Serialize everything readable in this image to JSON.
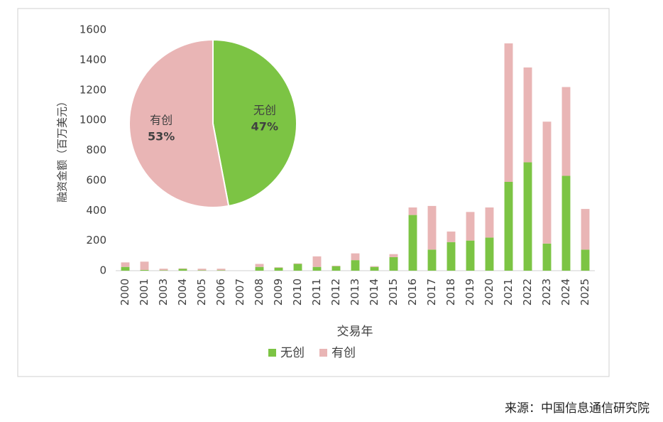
{
  "chart_data": [
    {
      "type": "bar",
      "stacked": true,
      "y_label": "融资金额（百万美元）",
      "x_label": "交易年",
      "categories": [
        "2000",
        "2001",
        "2003",
        "2004",
        "2005",
        "2006",
        "2007",
        "2008",
        "2009",
        "2010",
        "2011",
        "2012",
        "2013",
        "2014",
        "2015",
        "2016",
        "2017",
        "2018",
        "2019",
        "2020",
        "2021",
        "2022",
        "2023",
        "2024",
        "2025"
      ],
      "series": [
        {
          "name": "无创",
          "color": "#7cc444",
          "values": [
            25,
            5,
            3,
            12,
            3,
            3,
            0,
            25,
            20,
            45,
            25,
            30,
            70,
            25,
            90,
            370,
            140,
            190,
            200,
            220,
            590,
            720,
            180,
            630,
            140
          ]
        },
        {
          "name": "有创",
          "color": "#e9b5b5",
          "values": [
            30,
            55,
            10,
            3,
            10,
            10,
            0,
            20,
            3,
            3,
            70,
            3,
            45,
            5,
            20,
            50,
            290,
            70,
            190,
            200,
            920,
            630,
            810,
            590,
            270
          ]
        }
      ],
      "ylim": [
        0,
        1600
      ],
      "yticks": [
        0,
        200,
        400,
        600,
        800,
        1000,
        1200,
        1400,
        1600
      ],
      "legend": "bottom"
    },
    {
      "type": "pie",
      "categories": [
        "无创",
        "有创"
      ],
      "values": [
        47,
        53
      ],
      "value_labels": [
        "47%",
        "53%"
      ],
      "colors": [
        "#7cc444",
        "#e9b5b5"
      ]
    }
  ],
  "source": "来源：中国信息通信研究院"
}
